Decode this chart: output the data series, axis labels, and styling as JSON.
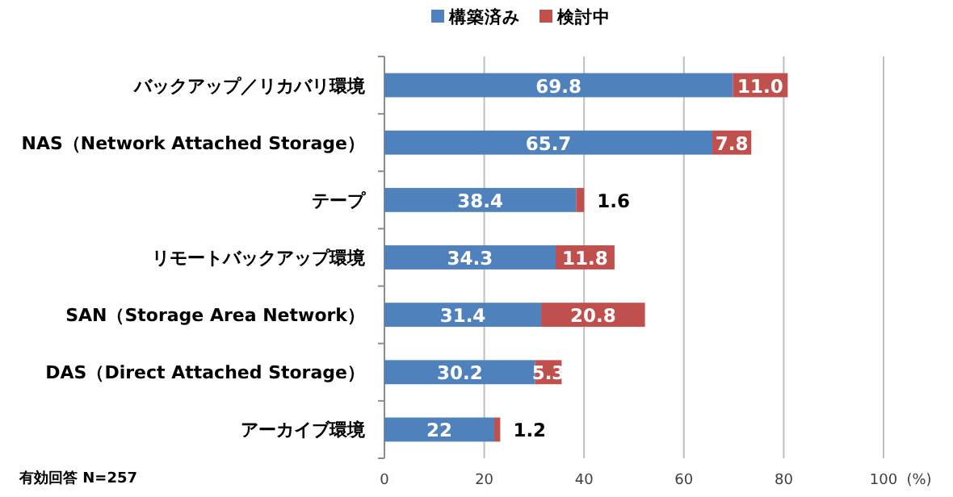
{
  "chart_data": {
    "type": "bar",
    "orientation": "horizontal",
    "stacked": true,
    "categories": [
      "バックアップ／リカバリ環境",
      "NAS（Network Attached Storage）",
      "テープ",
      "リモートバックアップ環境",
      "SAN（Storage Area Network）",
      "DAS（Direct Attached Storage）",
      "アーカイブ環境"
    ],
    "series": [
      {
        "name": "構築済み",
        "color": "#4f81bd",
        "values": [
          69.8,
          65.7,
          38.4,
          34.3,
          31.4,
          30.2,
          22
        ],
        "value_labels": [
          "69.8",
          "65.7",
          "38.4",
          "34.3",
          "31.4",
          "30.2",
          "22"
        ]
      },
      {
        "name": "検討中",
        "color": "#c0504d",
        "values": [
          11.0,
          7.8,
          1.6,
          11.8,
          20.8,
          5.3,
          1.2
        ],
        "value_labels": [
          "11.0",
          "7.8",
          "1.6",
          "11.8",
          "20.8",
          "5.3",
          "1.2"
        ]
      }
    ],
    "xlim": [
      0,
      100
    ],
    "xticks": [
      0,
      20,
      40,
      60,
      80,
      100
    ],
    "xlabel": "(%)",
    "grid": "x",
    "legend": "top",
    "annotations": [
      "有効回答 N=257"
    ]
  }
}
